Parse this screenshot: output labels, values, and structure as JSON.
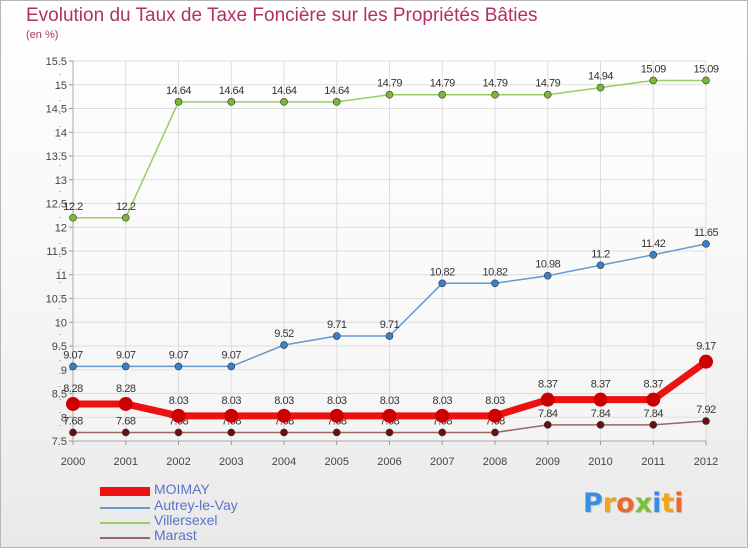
{
  "header": {
    "title": "Evolution du Taux de Taxe Foncière sur les Propriétés Bâties",
    "unit_label": "(en %)"
  },
  "chart_data": {
    "type": "line",
    "x": [
      "2000",
      "2001",
      "2002",
      "2003",
      "2004",
      "2005",
      "2006",
      "2007",
      "2008",
      "2009",
      "2010",
      "2011",
      "2012"
    ],
    "ylim": [
      7.5,
      15.5
    ],
    "ytick_step": 0.5,
    "grid": true,
    "series": [
      {
        "name": "MOIMAY",
        "color": "#ee1111",
        "marker": "#cc0000",
        "width": 7,
        "values": [
          8.28,
          8.28,
          8.03,
          8.03,
          8.03,
          8.03,
          8.03,
          8.03,
          8.03,
          8.37,
          8.37,
          8.37,
          9.17
        ],
        "labels": [
          "8.28",
          "8.28",
          "8.03",
          "8.03",
          "8.03",
          "8.03",
          "8.03",
          "8.03",
          "8.03",
          "8.37",
          "8.37",
          "8.37",
          "9.17"
        ]
      },
      {
        "name": "Autrey-le-Vay",
        "color": "#6699cc",
        "marker": "#3a7fc8",
        "width": 1.5,
        "values": [
          9.07,
          9.07,
          9.07,
          9.07,
          9.52,
          9.71,
          9.71,
          10.82,
          10.82,
          10.98,
          11.2,
          11.42,
          11.65
        ],
        "labels": [
          "9.07",
          "9.07",
          "9.07",
          "9.07",
          "9.52",
          "9.71",
          "9.71",
          "10.82",
          "10.82",
          "10.98",
          "11.2",
          "11.42",
          "11.65"
        ]
      },
      {
        "name": "Villersexel",
        "color": "#99cc66",
        "marker": "#77bb33",
        "width": 1.5,
        "values": [
          12.2,
          12.2,
          14.64,
          14.64,
          14.64,
          14.64,
          14.79,
          14.79,
          14.79,
          14.79,
          14.94,
          15.09,
          15.09
        ],
        "labels": [
          "12.2",
          "12.2",
          "14.64",
          "14.64",
          "14.64",
          "14.64",
          "14.79",
          "14.79",
          "14.79",
          "14.79",
          "14.94",
          "15.09",
          "15.09"
        ]
      },
      {
        "name": "Marast",
        "color": "#996666",
        "marker": "#661111",
        "width": 1.5,
        "values": [
          7.68,
          7.68,
          7.68,
          7.68,
          7.68,
          7.68,
          7.68,
          7.68,
          7.68,
          7.84,
          7.84,
          7.84,
          7.92
        ],
        "labels": [
          "7.68",
          "7.68",
          "7.68",
          "7.68",
          "7.68",
          "7.68",
          "7.68",
          "7.68",
          "7.68",
          "7.84",
          "7.84",
          "7.84",
          "7.92"
        ]
      }
    ]
  },
  "brand": {
    "letters": [
      "P",
      "r",
      "o",
      "x",
      "i",
      "t",
      "i"
    ],
    "colors": [
      "#3a8ee0",
      "#f2a31c",
      "#e9682a",
      "#7bbf3a",
      "#3a8ee0",
      "#f2a31c",
      "#e9682a"
    ]
  }
}
